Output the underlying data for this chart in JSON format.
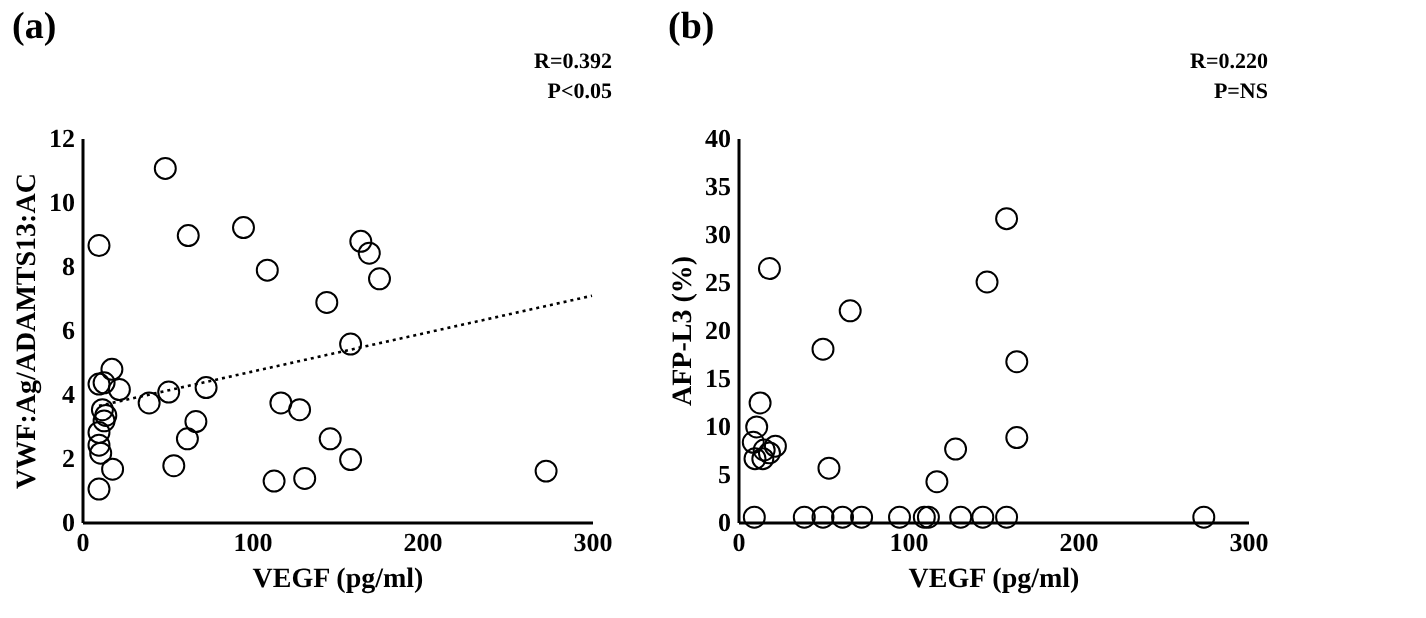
{
  "chart_data": [
    {
      "type": "scatter",
      "title": "(a)",
      "xlabel": "VEGF (pg/ml)",
      "ylabel": "VWF:Ag/ADAMTS13:AC",
      "annotations": [
        "R=0.392",
        "P<0.05"
      ],
      "xlim": [
        0,
        300
      ],
      "xticks": [
        0,
        100,
        200,
        300
      ],
      "ylim": [
        0,
        12
      ],
      "yticks": [
        0,
        2,
        4,
        6,
        8,
        10,
        12
      ],
      "grid": false,
      "legend": false,
      "series": [
        {
          "type": "scatter",
          "marker": "circle",
          "color": "#000000",
          "x": [
            10,
            49,
            62.5,
            95,
            109,
            164,
            169,
            175,
            144,
            158,
            17.6,
            10,
            13,
            22,
            39.5,
            51,
            73,
            117,
            128,
            12,
            13,
            14,
            67,
            62,
            10,
            10,
            11,
            146,
            158,
            18,
            54,
            113,
            131,
            273,
            10
          ],
          "values": [
            8.64,
            11.05,
            8.95,
            9.2,
            7.87,
            8.77,
            8.4,
            7.6,
            6.86,
            5.56,
            4.77,
            4.31,
            4.35,
            4.14,
            3.72,
            4.06,
            4.2,
            3.72,
            3.51,
            3.51,
            3.16,
            3.33,
            3.14,
            2.6,
            2.8,
            2.4,
            2.15,
            2.6,
            1.95,
            1.65,
            1.76,
            1.28,
            1.36,
            1.59,
            1.03
          ]
        },
        {
          "type": "line",
          "marker": "none",
          "color": "#000000",
          "line_style": "dotted",
          "x": [
            10,
            300
          ],
          "values": [
            3.63,
            7.07
          ]
        }
      ]
    },
    {
      "type": "scatter",
      "title": "(b)",
      "xlabel": "VEGF (pg/ml)",
      "ylabel": "AFP-L3 (%)",
      "annotations": [
        "R=0.220",
        "P=NS"
      ],
      "xlim": [
        0,
        300
      ],
      "xticks": [
        0,
        100,
        200,
        300
      ],
      "ylim": [
        0,
        40
      ],
      "yticks": [
        0,
        5,
        10,
        15,
        20,
        25,
        30,
        35,
        40
      ],
      "grid": false,
      "legend": false,
      "series": [
        {
          "type": "scatter",
          "marker": "circle",
          "color": "#000000",
          "x": [
            9.6,
            39,
            50,
            61.5,
            72.7,
            95,
            109.6,
            112,
            131,
            144,
            158,
            274,
            18.5,
            66,
            50,
            146.5,
            158,
            164,
            164,
            128,
            117,
            53.5,
            13,
            11,
            9,
            10,
            14.6,
            18.5,
            22,
            15.4
          ],
          "values": [
            0.5,
            0.5,
            0.5,
            0.5,
            0.5,
            0.5,
            0.5,
            0.5,
            0.5,
            0.5,
            0.5,
            0.5,
            26.4,
            22.0,
            18.0,
            25.0,
            31.6,
            16.7,
            8.8,
            7.6,
            4.2,
            5.6,
            12.4,
            9.9,
            8.3,
            6.6,
            6.6,
            7.2,
            7.9,
            7.5
          ]
        }
      ]
    }
  ]
}
